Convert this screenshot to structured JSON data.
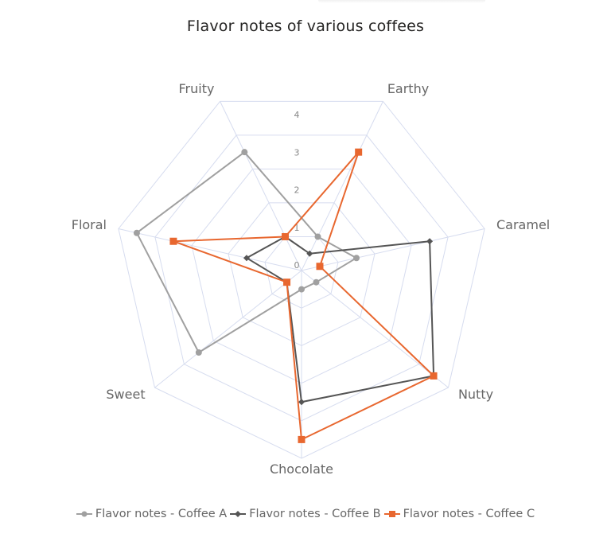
{
  "title": "Flavor notes of various coffees",
  "chart_data": {
    "type": "radar",
    "title": "Flavor notes of various coffees",
    "indicators": [
      "Fruity",
      "Earthy",
      "Caramel",
      "Nutty",
      "Chocolate",
      "Sweet",
      "Floral"
    ],
    "tick_labels": [
      "0",
      "1",
      "2",
      "3",
      "4"
    ],
    "range": [
      0,
      5
    ],
    "series": [
      {
        "name": "Flavor notes - Coffee A",
        "color": "#A0A0A0",
        "marker": "circle",
        "values": [
          3.5,
          1,
          1.5,
          0.5,
          0.5,
          3.5,
          4.5
        ]
      },
      {
        "name": "Flavor notes - Coffee B",
        "color": "#555555",
        "marker": "diamond",
        "values": [
          1,
          0.5,
          3.5,
          4.5,
          3.5,
          0.5,
          1.5
        ]
      },
      {
        "name": "Flavor notes - Coffee C",
        "color": "#E8672F",
        "marker": "square",
        "values": [
          1,
          3.5,
          0.5,
          4.5,
          4.5,
          0.5,
          3.5
        ]
      }
    ],
    "legend_position": "bottom",
    "grid_color": "#D6DCEF"
  },
  "legend": [
    {
      "label": "Flavor notes - Coffee A"
    },
    {
      "label": "Flavor notes - Coffee B"
    },
    {
      "label": "Flavor notes - Coffee C"
    }
  ]
}
